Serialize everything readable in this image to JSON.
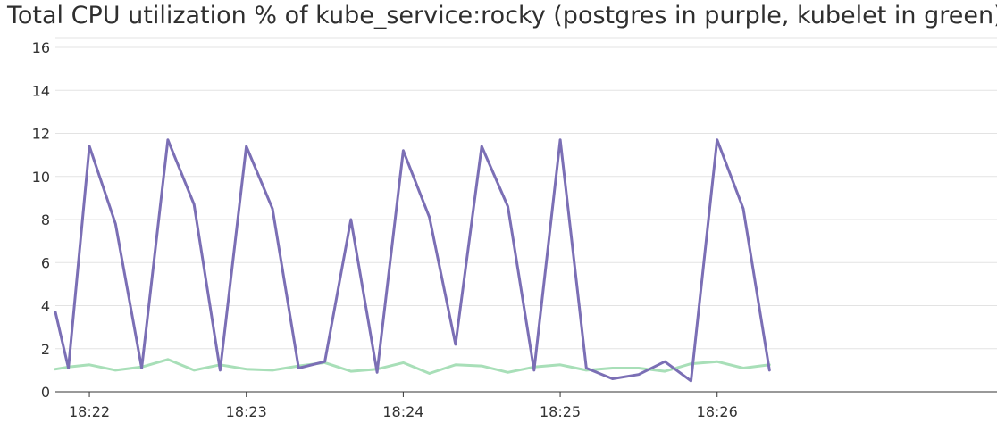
{
  "chart_data": {
    "type": "line",
    "title": "Total CPU utilization % of kube_service:rocky (postgres in purple, kubelet in green)",
    "xlabel": "",
    "ylabel": "",
    "ylim": [
      0,
      16
    ],
    "yticks": [
      0,
      2,
      4,
      6,
      8,
      10,
      12,
      14,
      16
    ],
    "xlim": [
      "18:21:47",
      "18:27:47"
    ],
    "xticks": [
      "18:22",
      "18:23",
      "18:24",
      "18:25",
      "18:26"
    ],
    "grid": true,
    "series": [
      {
        "color": "#7b6fb5",
        "points": [
          [
            "18:21:47",
            3.7
          ],
          [
            "18:21:52",
            1.1
          ],
          [
            "18:22:00",
            11.4
          ],
          [
            "18:22:10",
            7.8
          ],
          [
            "18:22:20",
            1.1
          ],
          [
            "18:22:30",
            11.7
          ],
          [
            "18:22:40",
            8.7
          ],
          [
            "18:22:50",
            1.0
          ],
          [
            "18:23:00",
            11.4
          ],
          [
            "18:23:10",
            8.5
          ],
          [
            "18:23:20",
            1.1
          ],
          [
            "18:23:30",
            1.4
          ],
          [
            "18:23:40",
            8.0
          ],
          [
            "18:23:50",
            0.9
          ],
          [
            "18:24:00",
            11.2
          ],
          [
            "18:24:10",
            8.1
          ],
          [
            "18:24:20",
            2.2
          ],
          [
            "18:24:30",
            11.4
          ],
          [
            "18:24:40",
            8.6
          ],
          [
            "18:24:50",
            1.0
          ],
          [
            "18:25:00",
            11.7
          ],
          [
            "18:25:10",
            1.1
          ],
          [
            "18:25:20",
            0.6
          ],
          [
            "18:25:30",
            0.8
          ],
          [
            "18:25:40",
            1.4
          ],
          [
            "18:25:50",
            0.5
          ],
          [
            "18:26:00",
            11.7
          ],
          [
            "18:26:10",
            8.5
          ],
          [
            "18:26:20",
            1.0
          ]
        ]
      },
      {
        "color": "#a8dfb8",
        "points": [
          [
            "18:21:47",
            1.05
          ],
          [
            "18:21:52",
            1.15
          ],
          [
            "18:22:00",
            1.25
          ],
          [
            "18:22:10",
            1.0
          ],
          [
            "18:22:20",
            1.15
          ],
          [
            "18:22:30",
            1.5
          ],
          [
            "18:22:40",
            1.0
          ],
          [
            "18:22:50",
            1.25
          ],
          [
            "18:23:00",
            1.05
          ],
          [
            "18:23:10",
            1.0
          ],
          [
            "18:23:20",
            1.2
          ],
          [
            "18:23:30",
            1.35
          ],
          [
            "18:23:40",
            0.95
          ],
          [
            "18:23:50",
            1.05
          ],
          [
            "18:24:00",
            1.35
          ],
          [
            "18:24:10",
            0.85
          ],
          [
            "18:24:20",
            1.25
          ],
          [
            "18:24:30",
            1.2
          ],
          [
            "18:24:40",
            0.9
          ],
          [
            "18:24:50",
            1.15
          ],
          [
            "18:25:00",
            1.25
          ],
          [
            "18:25:10",
            1.0
          ],
          [
            "18:25:20",
            1.1
          ],
          [
            "18:25:30",
            1.1
          ],
          [
            "18:25:40",
            0.95
          ],
          [
            "18:25:50",
            1.3
          ],
          [
            "18:26:00",
            1.4
          ],
          [
            "18:26:10",
            1.1
          ],
          [
            "18:26:20",
            1.25
          ]
        ]
      }
    ]
  }
}
